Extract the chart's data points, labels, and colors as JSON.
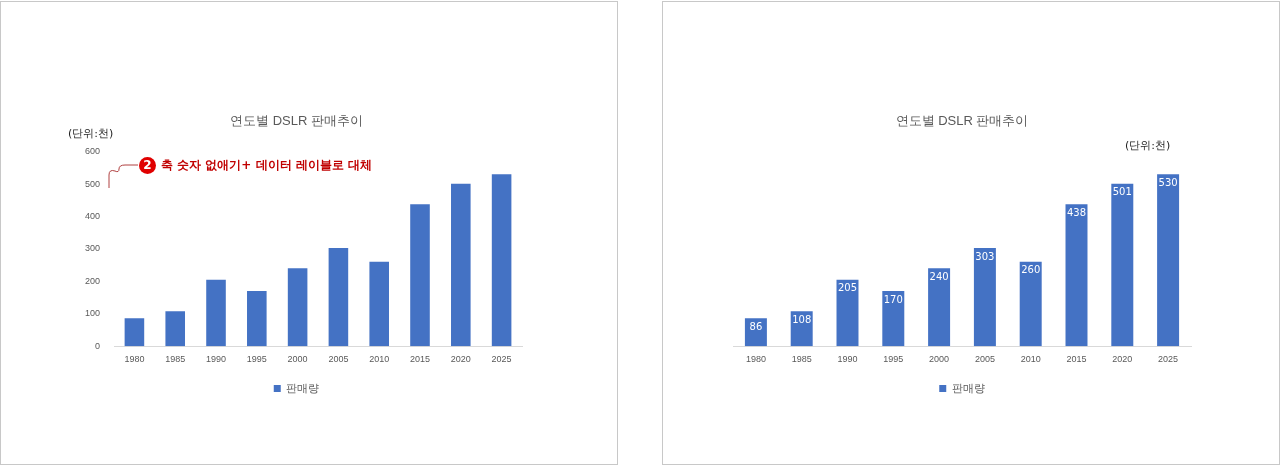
{
  "chart_data": [
    {
      "type": "bar",
      "title": "연도별 DSLR 판매추이",
      "categories": [
        "1980",
        "1985",
        "1990",
        "1995",
        "2000",
        "2005",
        "2010",
        "2015",
        "2020",
        "2025"
      ],
      "series": [
        {
          "name": "판매량",
          "color": "#4472c4",
          "values": [
            86,
            108,
            205,
            170,
            240,
            303,
            260,
            438,
            501,
            530
          ]
        }
      ],
      "ylim": [
        0,
        600
      ],
      "yticks": [
        0,
        100,
        200,
        300,
        400,
        500,
        600
      ],
      "legend": "bottom",
      "annotations": [
        "(단위:천)",
        "2",
        "축 숫자 없애기+ 데이터 레이블로 대체"
      ]
    },
    {
      "type": "bar",
      "title": "연도별 DSLR 판매추이",
      "categories": [
        "1980",
        "1985",
        "1990",
        "1995",
        "2000",
        "2005",
        "2010",
        "2015",
        "2020",
        "2025"
      ],
      "series": [
        {
          "name": "판매량",
          "color": "#4472c4",
          "values": [
            86,
            108,
            205,
            170,
            240,
            303,
            260,
            438,
            501,
            530
          ]
        }
      ],
      "ylim": [
        0,
        600
      ],
      "tick_labels": "x",
      "data_labels": true,
      "legend": "bottom",
      "annotations": [
        "(단위:천)"
      ]
    }
  ]
}
